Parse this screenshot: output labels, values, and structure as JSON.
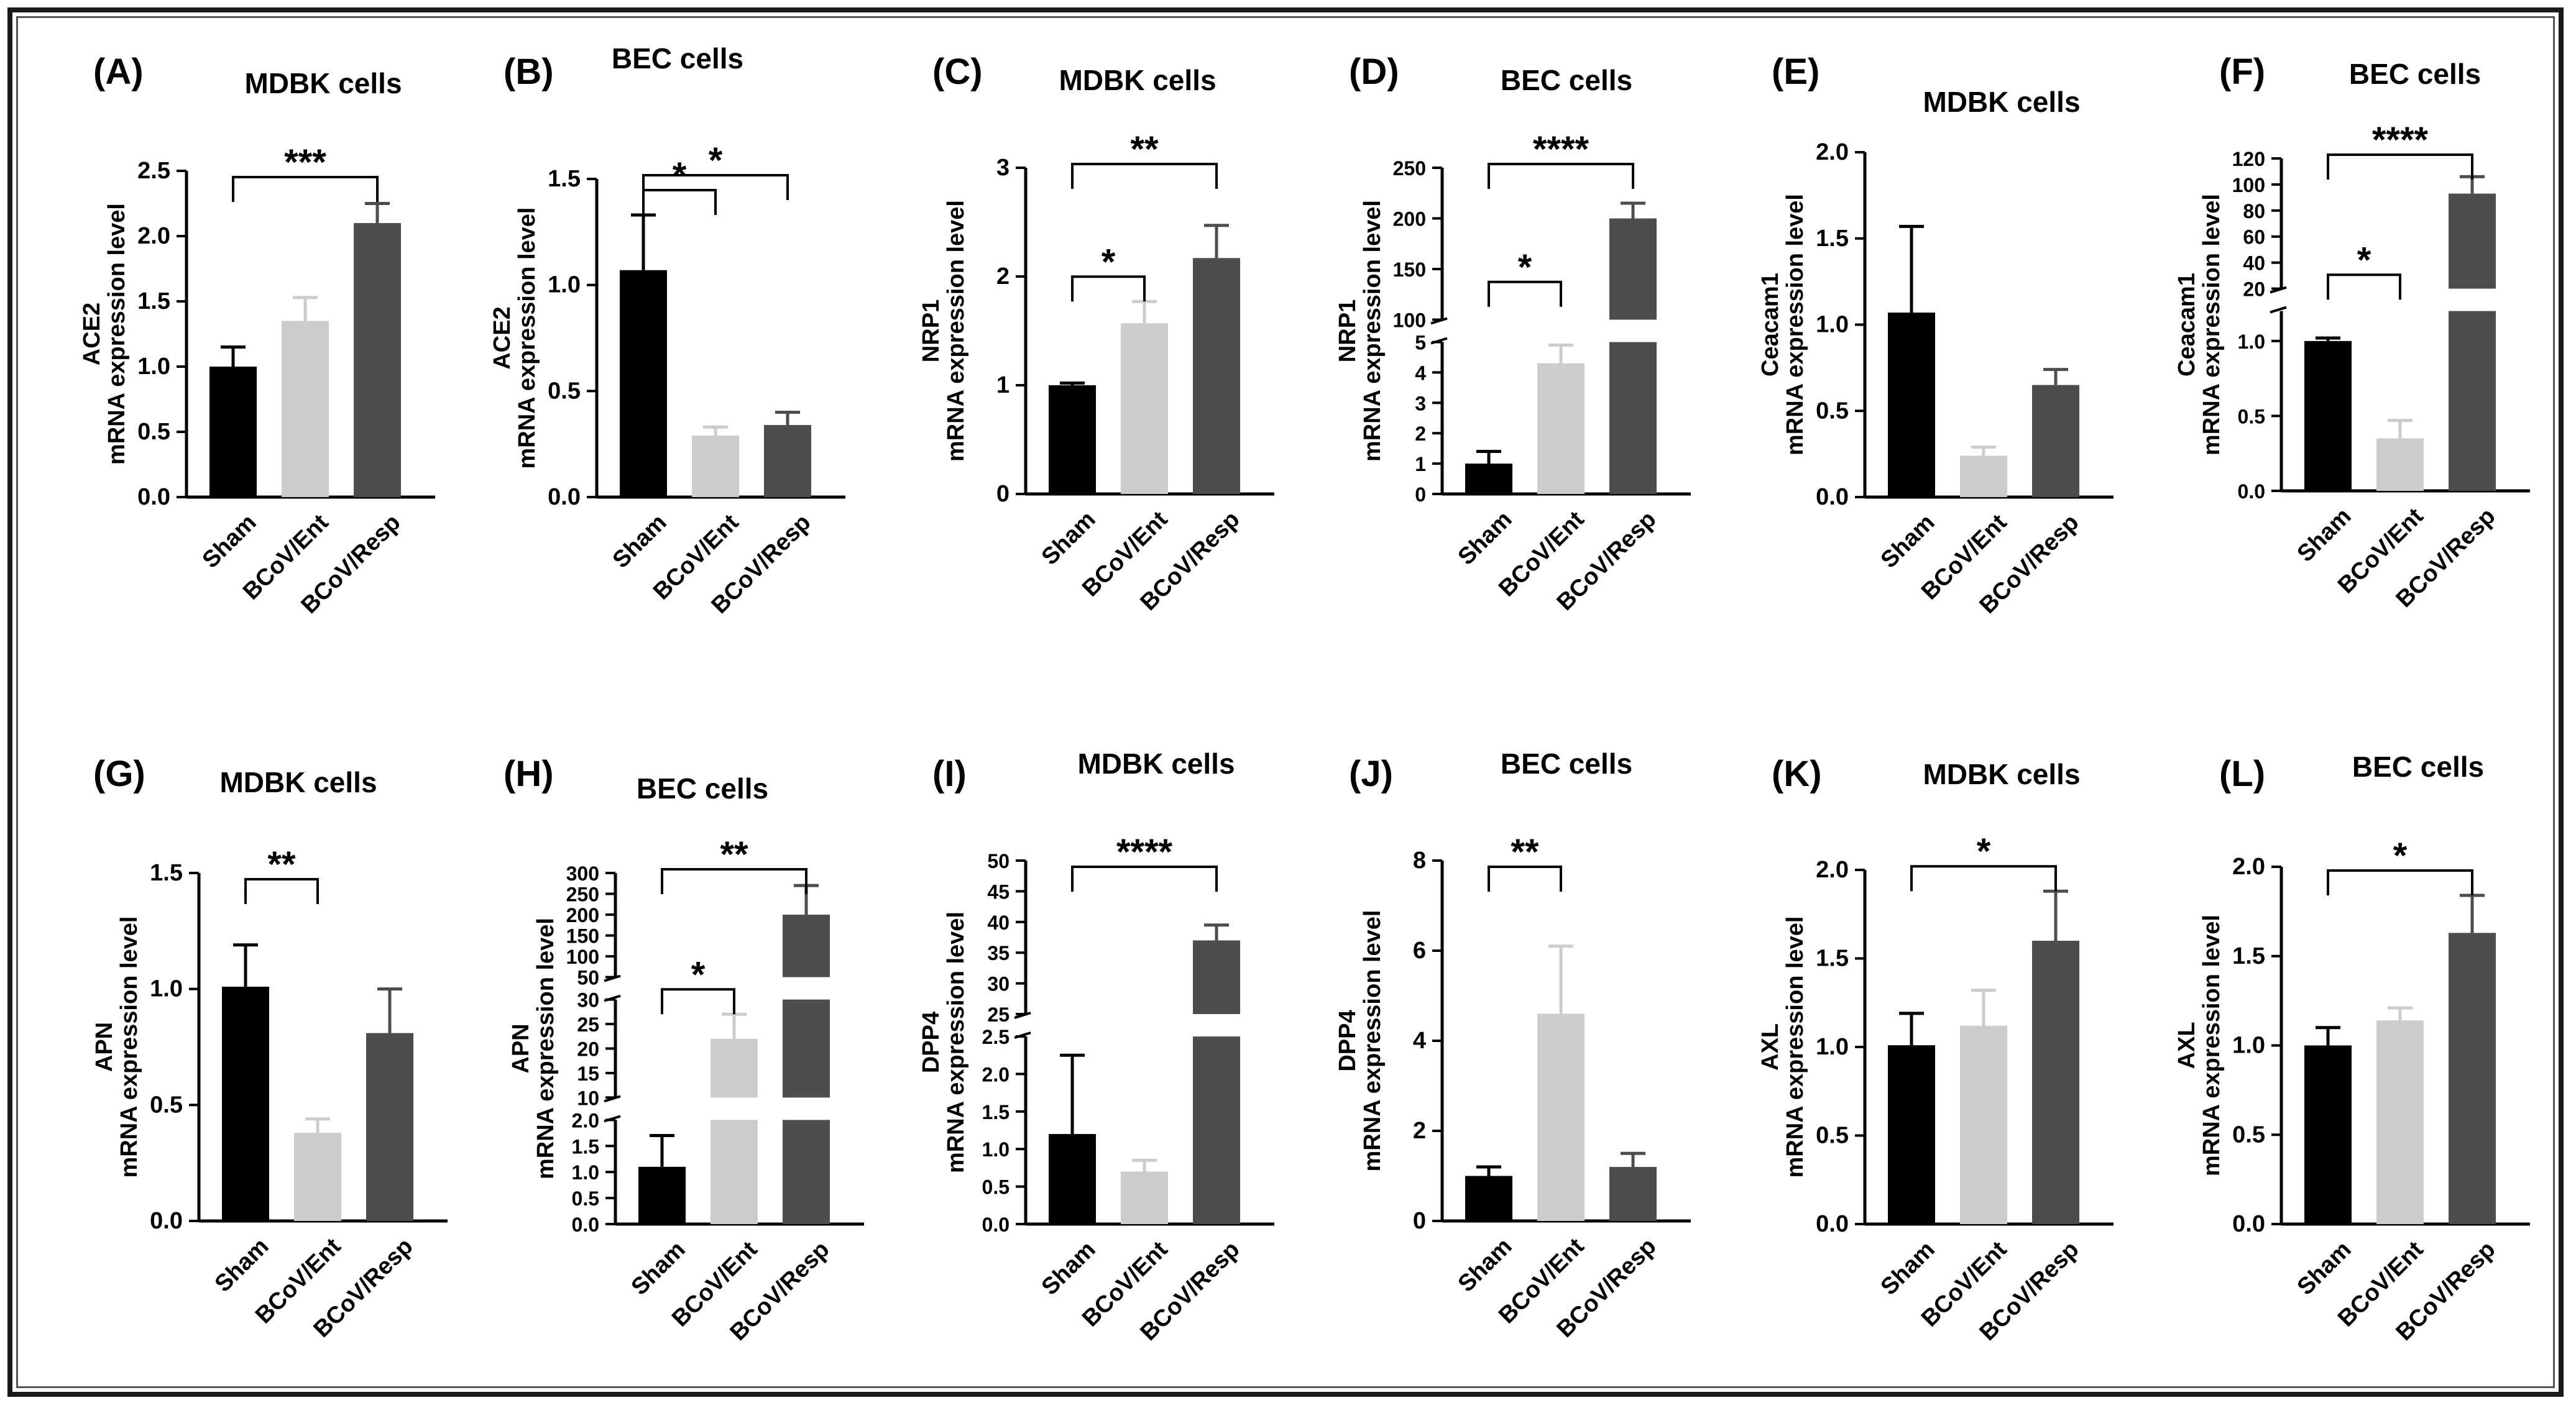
{
  "colors": {
    "sham": "#000000",
    "ent": "#cccccc",
    "resp": "#4d4d4d",
    "axis": "#000000"
  },
  "chart_data": [
    {
      "panel": "(A)",
      "title": "MDBK cells",
      "type": "bar",
      "ylabel": "ACE2",
      "ylabel2": "mRNA expression level",
      "categories": [
        "Sham",
        "BCoV/Ent",
        "BCoV/Resp"
      ],
      "values": [
        1.0,
        1.35,
        2.1
      ],
      "errors": [
        0.15,
        0.18,
        0.15
      ],
      "segments": [
        {
          "min": 0,
          "max": 2.5,
          "ticks": [
            {
              "v": 0,
              "l": "0.0"
            },
            {
              "v": 0.5,
              "l": "0.5"
            },
            {
              "v": 1.0,
              "l": "1.0"
            },
            {
              "v": 1.5,
              "l": "1.5"
            },
            {
              "v": 2.0,
              "l": "2.0"
            },
            {
              "v": 2.5,
              "l": "2.5"
            }
          ]
        }
      ],
      "sig": [
        {
          "from": 0,
          "to": 2,
          "label": "***"
        }
      ]
    },
    {
      "panel": "(B)",
      "title": "BEC cells",
      "type": "bar",
      "ylabel": "ACE2",
      "ylabel2": "mRNA expression level",
      "categories": [
        "Sham",
        "BCoV/Ent",
        "BCoV/Resp"
      ],
      "values": [
        1.07,
        0.29,
        0.34
      ],
      "errors": [
        0.26,
        0.04,
        0.06
      ],
      "segments": [
        {
          "min": 0,
          "max": 1.5,
          "ticks": [
            {
              "v": 0,
              "l": "0.0"
            },
            {
              "v": 0.5,
              "l": "0.5"
            },
            {
              "v": 1.0,
              "l": "1.0"
            },
            {
              "v": 1.5,
              "l": "1.5"
            }
          ]
        }
      ],
      "sig": [
        {
          "from": 0,
          "to": 1,
          "label": "*"
        },
        {
          "from": 0,
          "to": 2,
          "label": "*"
        }
      ]
    },
    {
      "panel": "(C)",
      "title": "MDBK cells",
      "type": "bar",
      "ylabel": "NRP1",
      "ylabel2": "mRNA expression level",
      "categories": [
        "Sham",
        "BCoV/Ent",
        "BCoV/Resp"
      ],
      "values": [
        1.0,
        1.57,
        2.17
      ],
      "errors": [
        0.02,
        0.2,
        0.3
      ],
      "segments": [
        {
          "min": 0,
          "max": 3,
          "ticks": [
            {
              "v": 0,
              "l": "0"
            },
            {
              "v": 1,
              "l": "1"
            },
            {
              "v": 2,
              "l": "2"
            },
            {
              "v": 3,
              "l": "3"
            }
          ]
        }
      ],
      "sig": [
        {
          "from": 0,
          "to": 1,
          "label": "*"
        },
        {
          "from": 0,
          "to": 2,
          "label": "**"
        }
      ]
    },
    {
      "panel": "(D)",
      "title": "BEC cells",
      "type": "bar",
      "ylabel": "NRP1",
      "ylabel2": "mRNA expression level",
      "categories": [
        "Sham",
        "BCoV/Ent",
        "BCoV/Resp"
      ],
      "values": [
        1.0,
        4.3,
        200
      ],
      "errors": [
        0.4,
        0.6,
        15
      ],
      "segments": [
        {
          "min": 0,
          "max": 5,
          "ticks": [
            {
              "v": 0,
              "l": "0"
            },
            {
              "v": 1,
              "l": "1"
            },
            {
              "v": 2,
              "l": "2"
            },
            {
              "v": 3,
              "l": "3"
            },
            {
              "v": 4,
              "l": "4"
            },
            {
              "v": 5,
              "l": "5"
            }
          ]
        },
        {
          "min": 100,
          "max": 250,
          "ticks": [
            {
              "v": 100,
              "l": "100"
            },
            {
              "v": 150,
              "l": "150"
            },
            {
              "v": 200,
              "l": "200"
            },
            {
              "v": 250,
              "l": "250"
            }
          ]
        }
      ],
      "sig": [
        {
          "from": 0,
          "to": 1,
          "label": "*"
        },
        {
          "from": 0,
          "to": 2,
          "label": "****"
        }
      ]
    },
    {
      "panel": "(E)",
      "title": "MDBK cells",
      "type": "bar",
      "ylabel": "Ceacam1",
      "ylabel2": "mRNA expression level",
      "categories": [
        "Sham",
        "BCoV/Ent",
        "BCoV/Resp"
      ],
      "values": [
        1.07,
        0.24,
        0.65
      ],
      "errors": [
        0.5,
        0.05,
        0.09
      ],
      "segments": [
        {
          "min": 0,
          "max": 2.0,
          "ticks": [
            {
              "v": 0,
              "l": "0.0"
            },
            {
              "v": 0.5,
              "l": "0.5"
            },
            {
              "v": 1.0,
              "l": "1.0"
            },
            {
              "v": 1.5,
              "l": "1.5"
            },
            {
              "v": 2.0,
              "l": "2.0"
            }
          ]
        }
      ],
      "sig": []
    },
    {
      "panel": "(F)",
      "title": "BEC cells",
      "type": "bar",
      "ylabel": "Ceacam1",
      "ylabel2": "mRNA expression level",
      "categories": [
        "Sham",
        "BCoV/Ent",
        "BCoV/Resp"
      ],
      "values": [
        1.0,
        0.35,
        93
      ],
      "errors": [
        0.02,
        0.12,
        13
      ],
      "segments": [
        {
          "min": 0,
          "max": 1.2,
          "ticks": [
            {
              "v": 0,
              "l": "0.0"
            },
            {
              "v": 0.5,
              "l": "0.5"
            },
            {
              "v": 1.0,
              "l": "1.0"
            }
          ]
        },
        {
          "min": 20,
          "max": 120,
          "ticks": [
            {
              "v": 20,
              "l": "20"
            },
            {
              "v": 40,
              "l": "40"
            },
            {
              "v": 60,
              "l": "60"
            },
            {
              "v": 80,
              "l": "80"
            },
            {
              "v": 100,
              "l": "100"
            },
            {
              "v": 120,
              "l": "120"
            }
          ]
        }
      ],
      "sig": [
        {
          "from": 0,
          "to": 1,
          "label": "*"
        },
        {
          "from": 0,
          "to": 2,
          "label": "****"
        }
      ]
    },
    {
      "panel": "(G)",
      "title": "MDBK cells",
      "type": "bar",
      "ylabel": "APN",
      "ylabel2": "mRNA expression level",
      "categories": [
        "Sham",
        "BCoV/Ent",
        "BCoV/Resp"
      ],
      "values": [
        1.01,
        0.38,
        0.81
      ],
      "errors": [
        0.18,
        0.06,
        0.19
      ],
      "segments": [
        {
          "min": 0,
          "max": 1.5,
          "ticks": [
            {
              "v": 0,
              "l": "0.0"
            },
            {
              "v": 0.5,
              "l": "0.5"
            },
            {
              "v": 1.0,
              "l": "1.0"
            },
            {
              "v": 1.5,
              "l": "1.5"
            }
          ]
        }
      ],
      "sig": [
        {
          "from": 0,
          "to": 1,
          "label": "**"
        }
      ]
    },
    {
      "panel": "(H)",
      "title": "BEC cells",
      "type": "bar",
      "ylabel": "APN",
      "ylabel2": "mRNA expression level",
      "categories": [
        "Sham",
        "BCoV/Ent",
        "BCoV/Resp"
      ],
      "values": [
        1.1,
        22,
        200
      ],
      "errors": [
        0.6,
        5,
        70
      ],
      "segments": [
        {
          "min": 0,
          "max": 2.0,
          "ticks": [
            {
              "v": 0,
              "l": "0.0"
            },
            {
              "v": 0.5,
              "l": "0.5"
            },
            {
              "v": 1.0,
              "l": "1.0"
            },
            {
              "v": 1.5,
              "l": "1.5"
            },
            {
              "v": 2.0,
              "l": "2.0"
            }
          ]
        },
        {
          "min": 10,
          "max": 30,
          "ticks": [
            {
              "v": 10,
              "l": "10"
            },
            {
              "v": 15,
              "l": "15"
            },
            {
              "v": 20,
              "l": "20"
            },
            {
              "v": 25,
              "l": "25"
            },
            {
              "v": 30,
              "l": "30"
            }
          ]
        },
        {
          "min": 50,
          "max": 300,
          "ticks": [
            {
              "v": 50,
              "l": "50"
            },
            {
              "v": 100,
              "l": "100"
            },
            {
              "v": 150,
              "l": "150"
            },
            {
              "v": 200,
              "l": "200"
            },
            {
              "v": 250,
              "l": "250"
            },
            {
              "v": 300,
              "l": "300"
            }
          ]
        }
      ],
      "sig": [
        {
          "from": 0,
          "to": 1,
          "label": "*"
        },
        {
          "from": 0,
          "to": 2,
          "label": "**"
        }
      ]
    },
    {
      "panel": "(I)",
      "title": "MDBK cells",
      "type": "bar",
      "ylabel": "DPP4",
      "ylabel2": "mRNA expression level",
      "categories": [
        "Sham",
        "BCoV/Ent",
        "BCoV/Resp"
      ],
      "values": [
        1.2,
        0.7,
        37
      ],
      "errors": [
        1.05,
        0.15,
        2.5
      ],
      "segments": [
        {
          "min": 0,
          "max": 2.5,
          "ticks": [
            {
              "v": 0,
              "l": "0.0"
            },
            {
              "v": 0.5,
              "l": "0.5"
            },
            {
              "v": 1.0,
              "l": "1.0"
            },
            {
              "v": 1.5,
              "l": "1.5"
            },
            {
              "v": 2.0,
              "l": "2.0"
            },
            {
              "v": 2.5,
              "l": "2.5"
            }
          ]
        },
        {
          "min": 25,
          "max": 50,
          "ticks": [
            {
              "v": 25,
              "l": "25"
            },
            {
              "v": 30,
              "l": "30"
            },
            {
              "v": 35,
              "l": "35"
            },
            {
              "v": 40,
              "l": "40"
            },
            {
              "v": 45,
              "l": "45"
            },
            {
              "v": 50,
              "l": "50"
            }
          ]
        }
      ],
      "sig": [
        {
          "from": 0,
          "to": 2,
          "label": "****"
        }
      ]
    },
    {
      "panel": "(J)",
      "title": "BEC cells",
      "type": "bar",
      "ylabel": "DPP4",
      "ylabel2": "mRNA expression level",
      "categories": [
        "Sham",
        "BCoV/Ent",
        "BCoV/Resp"
      ],
      "values": [
        1.0,
        4.6,
        1.2
      ],
      "errors": [
        0.2,
        1.5,
        0.3
      ],
      "segments": [
        {
          "min": 0,
          "max": 8,
          "ticks": [
            {
              "v": 0,
              "l": "0"
            },
            {
              "v": 2,
              "l": "2"
            },
            {
              "v": 4,
              "l": "4"
            },
            {
              "v": 6,
              "l": "6"
            },
            {
              "v": 8,
              "l": "8"
            }
          ]
        }
      ],
      "sig": [
        {
          "from": 0,
          "to": 1,
          "label": "**"
        }
      ]
    },
    {
      "panel": "(K)",
      "title": "MDBK cells",
      "type": "bar",
      "ylabel": "AXL",
      "ylabel2": "mRNA expression level",
      "categories": [
        "Sham",
        "BCoV/Ent",
        "BCoV/Resp"
      ],
      "values": [
        1.01,
        1.12,
        1.6
      ],
      "errors": [
        0.18,
        0.2,
        0.28
      ],
      "segments": [
        {
          "min": 0,
          "max": 2.0,
          "ticks": [
            {
              "v": 0,
              "l": "0.0"
            },
            {
              "v": 0.5,
              "l": "0.5"
            },
            {
              "v": 1.0,
              "l": "1.0"
            },
            {
              "v": 1.5,
              "l": "1.5"
            },
            {
              "v": 2.0,
              "l": "2.0"
            }
          ]
        }
      ],
      "sig": [
        {
          "from": 0,
          "to": 2,
          "label": "*"
        }
      ]
    },
    {
      "panel": "(L)",
      "title": "BEC cells",
      "type": "bar",
      "ylabel": "AXL",
      "ylabel2": "mRNA expression level",
      "categories": [
        "Sham",
        "BCoV/Ent",
        "BCoV/Resp"
      ],
      "values": [
        1.0,
        1.14,
        1.63
      ],
      "errors": [
        0.1,
        0.07,
        0.21
      ],
      "segments": [
        {
          "min": 0,
          "max": 2.0,
          "ticks": [
            {
              "v": 0,
              "l": "0.0"
            },
            {
              "v": 0.5,
              "l": "0.5"
            },
            {
              "v": 1.0,
              "l": "1.0"
            },
            {
              "v": 1.5,
              "l": "1.5"
            },
            {
              "v": 2.0,
              "l": "2.0"
            }
          ]
        }
      ],
      "sig": [
        {
          "from": 0,
          "to": 2,
          "label": "*"
        }
      ]
    }
  ]
}
